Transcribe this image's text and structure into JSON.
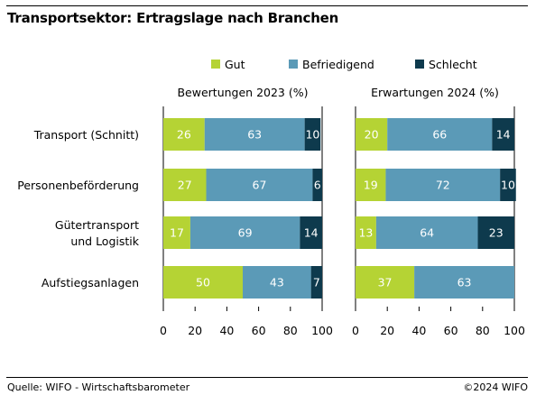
{
  "title": "Transportsektor: Ertragslage nach Branchen",
  "source": "Quelle: WIFO - Wirtschaftsbarometer",
  "copyright": "©2024 WIFO",
  "colors": {
    "Gut": "#b5d334",
    "Befriedigend": "#5b9ab7",
    "Schlecht": "#0e3a4d"
  },
  "chart_data": {
    "type": "bar",
    "orientation": "horizontal",
    "stacked": true,
    "categories": [
      [
        "Transport (Schnitt)"
      ],
      [
        "Personenbeförderung"
      ],
      [
        "Gütertransport",
        "und Logistik"
      ],
      [
        "Aufstiegsanlagen"
      ]
    ],
    "legend": [
      "Gut",
      "Befriedigend",
      "Schlecht"
    ],
    "legend_position": "top",
    "xlim": [
      0,
      100
    ],
    "xticks": [
      0,
      20,
      40,
      60,
      80,
      100
    ],
    "grid": false,
    "panels": [
      {
        "title": "Bewertungen 2023 (%)",
        "series": [
          {
            "name": "Gut",
            "values": [
              26,
              27,
              17,
              50
            ]
          },
          {
            "name": "Befriedigend",
            "values": [
              63,
              67,
              69,
              43
            ]
          },
          {
            "name": "Schlecht",
            "values": [
              10,
              6,
              14,
              7
            ]
          }
        ]
      },
      {
        "title": "Erwartungen 2024 (%)",
        "series": [
          {
            "name": "Gut",
            "values": [
              20,
              19,
              13,
              37
            ]
          },
          {
            "name": "Befriedigend",
            "values": [
              66,
              72,
              64,
              63
            ]
          },
          {
            "name": "Schlecht",
            "values": [
              14,
              10,
              23,
              null
            ]
          }
        ]
      }
    ]
  }
}
